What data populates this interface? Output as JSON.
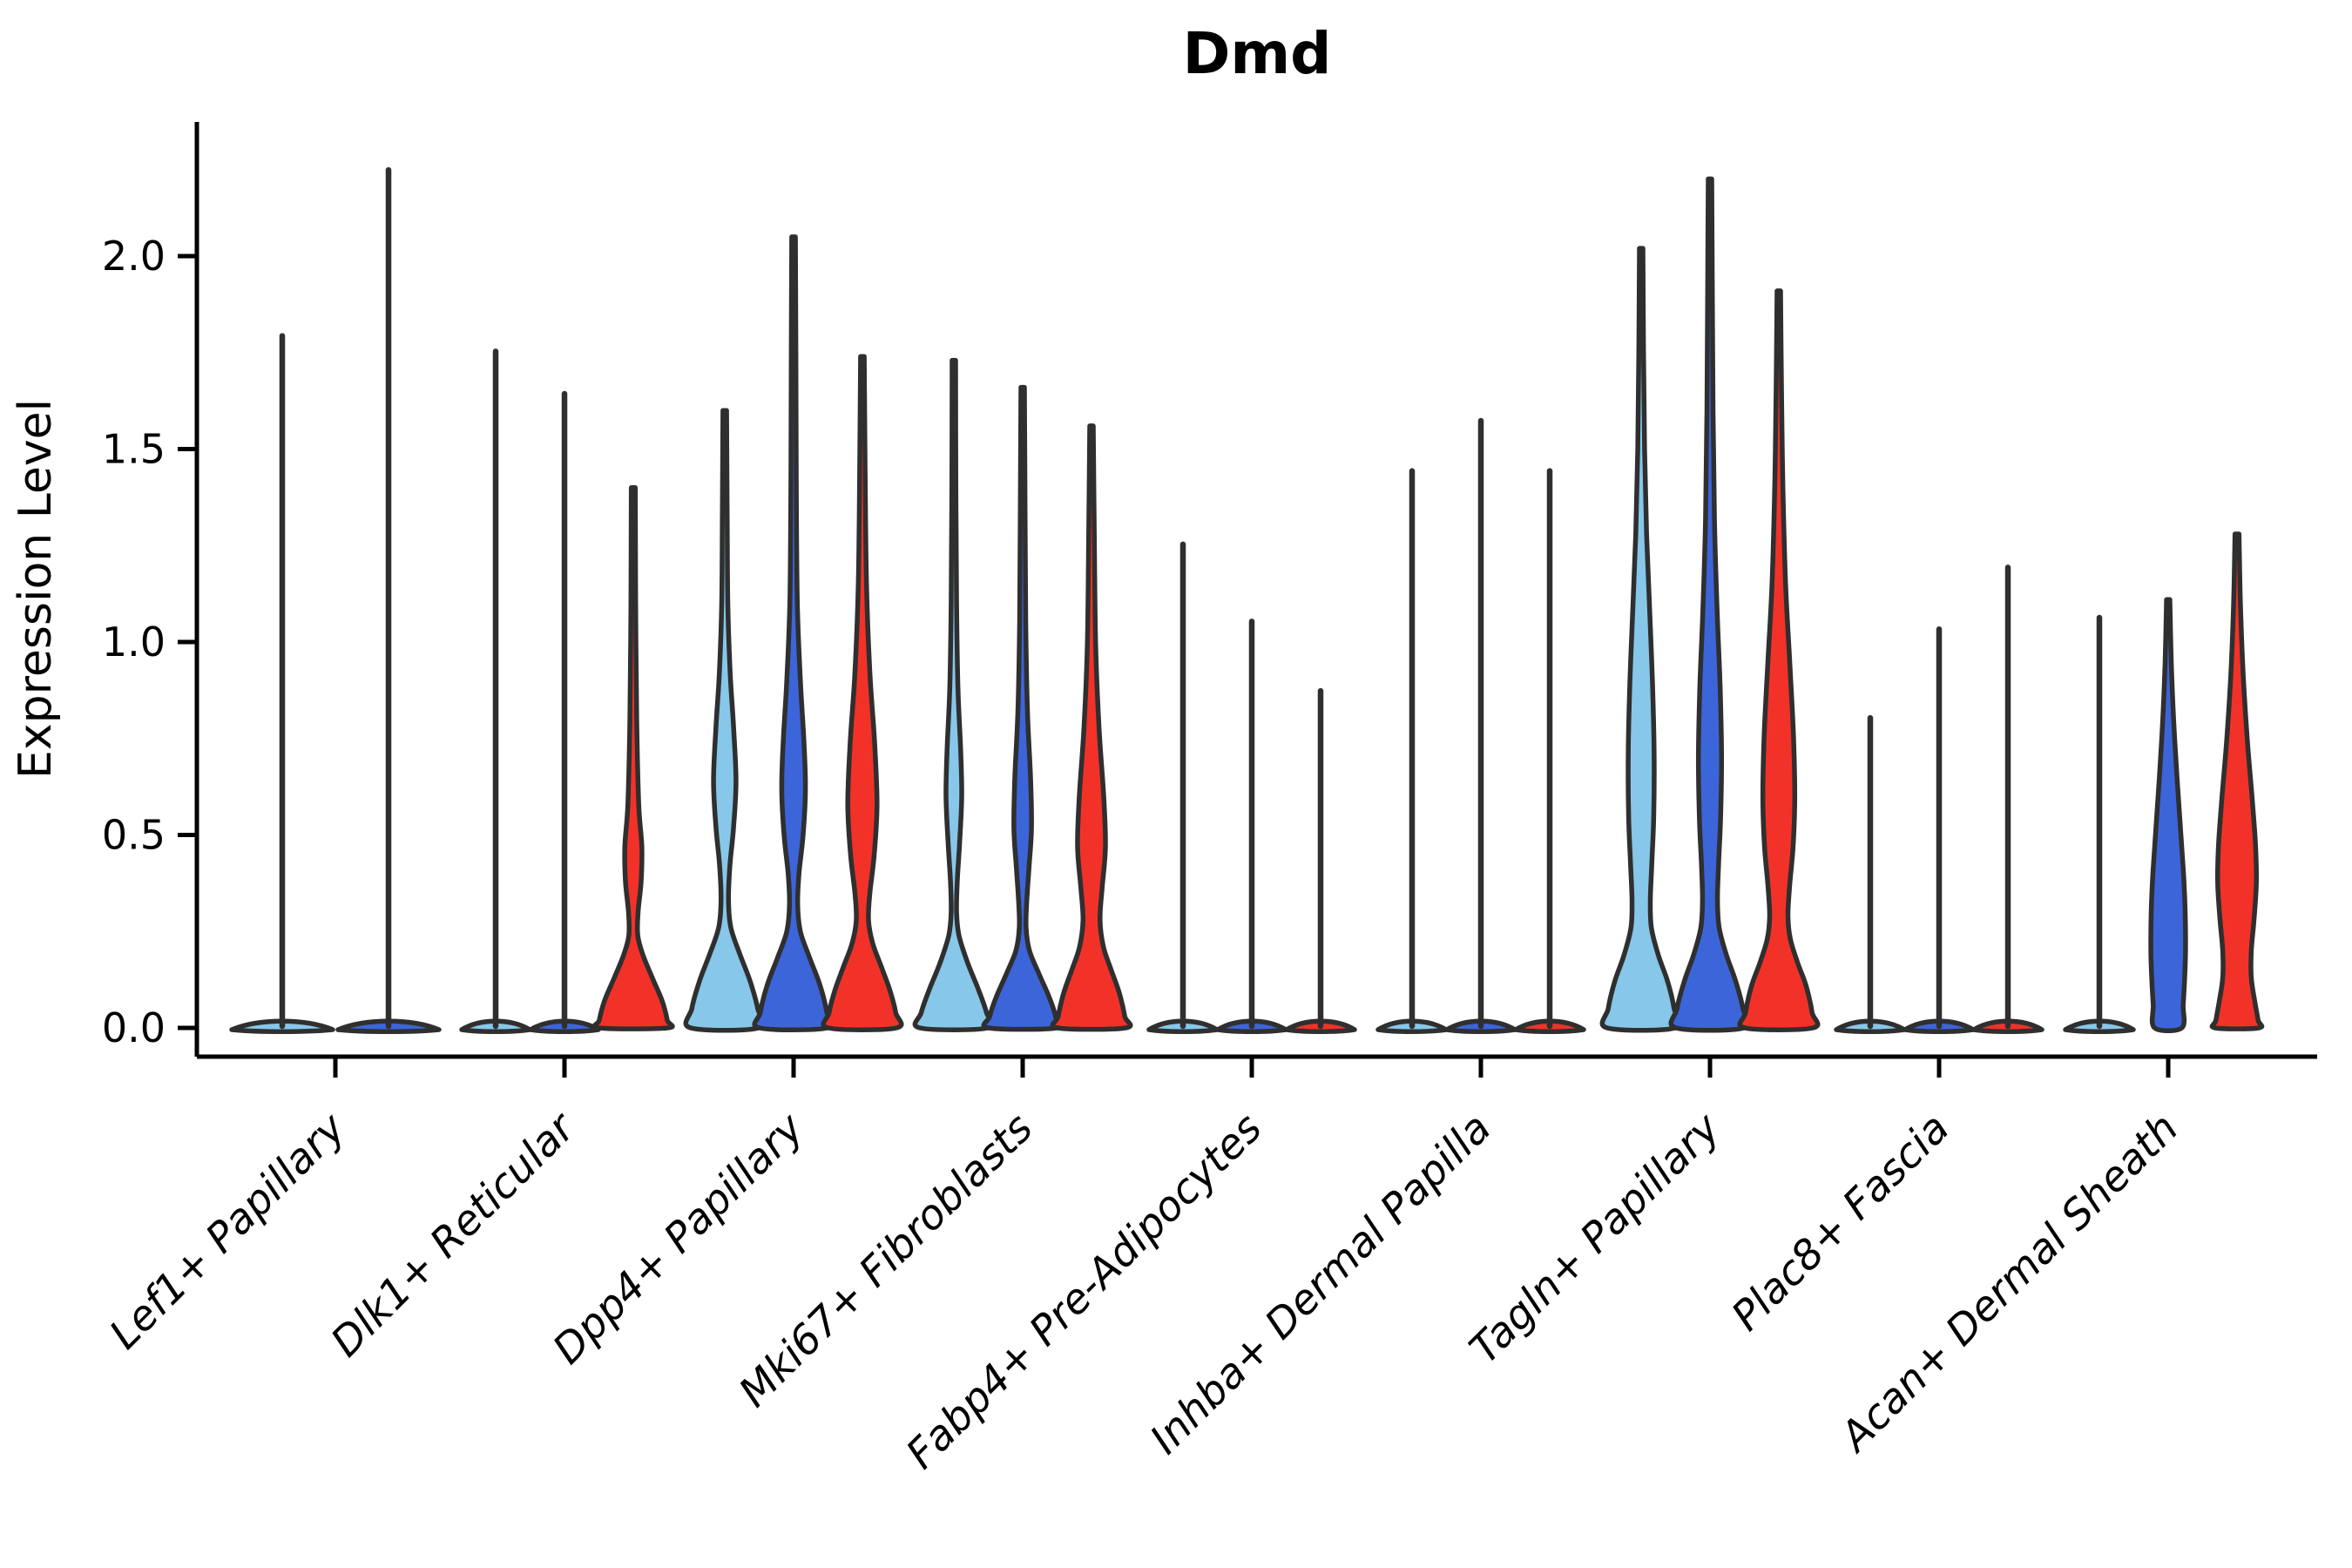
{
  "chart_data": {
    "type": "violin",
    "title": "Dmd",
    "ylabel": "Expression Level",
    "xlabel": "",
    "yticks": [
      "0.0",
      "0.5",
      "1.0",
      "1.5",
      "2.0"
    ],
    "ytick_values": [
      0.0,
      0.5,
      1.0,
      1.5,
      2.0
    ],
    "ylim": [
      -0.08,
      2.35
    ],
    "grid": false,
    "legend_position": "none",
    "outline_color": "#2F2F2F",
    "axis_color": "#000000",
    "series": [
      {
        "name": "series-lightblue",
        "color": "#87C7E9"
      },
      {
        "name": "series-blue",
        "color": "#3D65DA"
      },
      {
        "name": "series-red",
        "color": "#F23229"
      }
    ],
    "categories": [
      "Lef1+ Papillary",
      "Dlk1+ Reticular",
      "Dpp4+ Papillary",
      "Mki67+ Fibroblasts",
      "Fabp4+ Pre-Adipocytes",
      "Inhba+ Dermal Papilla",
      "Tagln+ Papillary",
      "Plac8+ Fascia",
      "Acan+ Dermal Sheath"
    ],
    "groups": [
      {
        "category": "Lef1+ Papillary",
        "violins": [
          {
            "series": 0,
            "kind": "spike",
            "max": 1.8,
            "offset": -61,
            "halfwidth": 58
          },
          {
            "series": 1,
            "kind": "spike",
            "max": 2.23,
            "offset": 61,
            "halfwidth": 58
          }
        ]
      },
      {
        "category": "Dlk1+ Reticular",
        "violins": [
          {
            "series": 0,
            "kind": "spike",
            "max": 1.76,
            "offset": -79,
            "halfwidth": 39
          },
          {
            "series": 1,
            "kind": "spike",
            "max": 1.65,
            "offset": 0,
            "halfwidth": 39
          },
          {
            "series": 2,
            "kind": "body",
            "max": 1.4,
            "offset": 79,
            "halfwidth": 39,
            "profile": [
              [
                1.4,
                0.06
              ],
              [
                1.1,
                0.07
              ],
              [
                0.8,
                0.1
              ],
              [
                0.58,
                0.16
              ],
              [
                0.47,
                0.25
              ],
              [
                0.38,
                0.23
              ],
              [
                0.3,
                0.14
              ],
              [
                0.24,
                0.13
              ],
              [
                0.19,
                0.28
              ],
              [
                0.13,
                0.56
              ],
              [
                0.07,
                0.85
              ],
              [
                0.02,
                1.0
              ],
              [
                0,
                1.0
              ]
            ]
          }
        ]
      },
      {
        "category": "Dpp4+ Papillary",
        "violins": [
          {
            "series": 0,
            "kind": "body",
            "max": 1.6,
            "offset": -79,
            "halfwidth": 39,
            "profile": [
              [
                1.6,
                0.055
              ],
              [
                1.35,
                0.07
              ],
              [
                1.1,
                0.09
              ],
              [
                0.92,
                0.16
              ],
              [
                0.78,
                0.26
              ],
              [
                0.64,
                0.33
              ],
              [
                0.52,
                0.26
              ],
              [
                0.42,
                0.15
              ],
              [
                0.33,
                0.11
              ],
              [
                0.26,
                0.18
              ],
              [
                0.19,
                0.45
              ],
              [
                0.12,
                0.75
              ],
              [
                0.05,
                0.97
              ],
              [
                0,
                1.0
              ]
            ]
          },
          {
            "series": 1,
            "kind": "body",
            "max": 2.05,
            "offset": 0,
            "halfwidth": 39,
            "profile": [
              [
                2.05,
                0.055
              ],
              [
                1.7,
                0.07
              ],
              [
                1.4,
                0.08
              ],
              [
                1.1,
                0.11
              ],
              [
                0.9,
                0.2
              ],
              [
                0.75,
                0.3
              ],
              [
                0.62,
                0.35
              ],
              [
                0.5,
                0.28
              ],
              [
                0.4,
                0.16
              ],
              [
                0.32,
                0.12
              ],
              [
                0.25,
                0.2
              ],
              [
                0.18,
                0.48
              ],
              [
                0.11,
                0.78
              ],
              [
                0.04,
                0.98
              ],
              [
                0,
                1.0
              ]
            ]
          },
          {
            "series": 2,
            "kind": "body",
            "max": 1.74,
            "offset": 79,
            "halfwidth": 39,
            "profile": [
              [
                1.74,
                0.055
              ],
              [
                1.45,
                0.08
              ],
              [
                1.15,
                0.12
              ],
              [
                0.92,
                0.22
              ],
              [
                0.74,
                0.36
              ],
              [
                0.58,
                0.43
              ],
              [
                0.45,
                0.35
              ],
              [
                0.35,
                0.22
              ],
              [
                0.28,
                0.18
              ],
              [
                0.22,
                0.3
              ],
              [
                0.16,
                0.55
              ],
              [
                0.1,
                0.8
              ],
              [
                0.04,
                0.98
              ],
              [
                0,
                1.0
              ]
            ]
          }
        ]
      },
      {
        "category": "Mki67+ Fibroblasts",
        "violins": [
          {
            "series": 0,
            "kind": "body",
            "max": 1.73,
            "offset": -79,
            "halfwidth": 39,
            "profile": [
              [
                1.73,
                0.05
              ],
              [
                1.4,
                0.06
              ],
              [
                1.1,
                0.08
              ],
              [
                0.88,
                0.12
              ],
              [
                0.72,
                0.2
              ],
              [
                0.6,
                0.23
              ],
              [
                0.48,
                0.17
              ],
              [
                0.38,
                0.1
              ],
              [
                0.3,
                0.08
              ],
              [
                0.24,
                0.15
              ],
              [
                0.17,
                0.4
              ],
              [
                0.1,
                0.72
              ],
              [
                0.04,
                0.96
              ],
              [
                0,
                1.0
              ]
            ]
          },
          {
            "series": 1,
            "kind": "body",
            "max": 1.66,
            "offset": 0,
            "halfwidth": 39,
            "profile": [
              [
                1.66,
                0.05
              ],
              [
                1.35,
                0.07
              ],
              [
                1.05,
                0.09
              ],
              [
                0.82,
                0.14
              ],
              [
                0.65,
                0.23
              ],
              [
                0.52,
                0.26
              ],
              [
                0.42,
                0.19
              ],
              [
                0.33,
                0.12
              ],
              [
                0.26,
                0.1
              ],
              [
                0.2,
                0.2
              ],
              [
                0.14,
                0.48
              ],
              [
                0.08,
                0.78
              ],
              [
                0.03,
                0.97
              ],
              [
                0,
                1.0
              ]
            ]
          },
          {
            "series": 2,
            "kind": "body",
            "max": 1.56,
            "offset": 79,
            "halfwidth": 39,
            "profile": [
              [
                1.56,
                0.05
              ],
              [
                1.3,
                0.08
              ],
              [
                1.0,
                0.12
              ],
              [
                0.78,
                0.22
              ],
              [
                0.6,
                0.36
              ],
              [
                0.47,
                0.41
              ],
              [
                0.36,
                0.31
              ],
              [
                0.28,
                0.25
              ],
              [
                0.21,
                0.35
              ],
              [
                0.15,
                0.58
              ],
              [
                0.09,
                0.82
              ],
              [
                0.03,
                0.98
              ],
              [
                0,
                1.0
              ]
            ]
          }
        ]
      },
      {
        "category": "Fabp4+ Pre-Adipocytes",
        "violins": [
          {
            "series": 0,
            "kind": "spike",
            "max": 1.26,
            "offset": -79,
            "halfwidth": 39
          },
          {
            "series": 1,
            "kind": "spike",
            "max": 1.06,
            "offset": 0,
            "halfwidth": 39
          },
          {
            "series": 2,
            "kind": "spike",
            "max": 0.88,
            "offset": 79,
            "halfwidth": 39
          }
        ]
      },
      {
        "category": "Inhba+ Dermal Papilla",
        "violins": [
          {
            "series": 0,
            "kind": "spike",
            "max": 1.45,
            "offset": -79,
            "halfwidth": 39
          },
          {
            "series": 1,
            "kind": "spike",
            "max": 1.58,
            "offset": 0,
            "halfwidth": 39
          },
          {
            "series": 2,
            "kind": "spike",
            "max": 1.45,
            "offset": 79,
            "halfwidth": 39
          }
        ]
      },
      {
        "category": "Tagln+ Papillary",
        "violins": [
          {
            "series": 0,
            "kind": "body",
            "max": 2.02,
            "offset": -79,
            "halfwidth": 39,
            "profile": [
              [
                2.02,
                0.05
              ],
              [
                1.75,
                0.07
              ],
              [
                1.5,
                0.1
              ],
              [
                1.28,
                0.16
              ],
              [
                1.08,
                0.25
              ],
              [
                0.9,
                0.33
              ],
              [
                0.72,
                0.38
              ],
              [
                0.55,
                0.37
              ],
              [
                0.42,
                0.31
              ],
              [
                0.33,
                0.27
              ],
              [
                0.26,
                0.3
              ],
              [
                0.19,
                0.5
              ],
              [
                0.12,
                0.78
              ],
              [
                0.05,
                0.97
              ],
              [
                0,
                1.0
              ]
            ]
          },
          {
            "series": 1,
            "kind": "body",
            "max": 2.2,
            "offset": 0,
            "halfwidth": 39,
            "profile": [
              [
                2.2,
                0.05
              ],
              [
                1.9,
                0.07
              ],
              [
                1.6,
                0.09
              ],
              [
                1.32,
                0.13
              ],
              [
                1.08,
                0.21
              ],
              [
                0.88,
                0.3
              ],
              [
                0.7,
                0.34
              ],
              [
                0.54,
                0.31
              ],
              [
                0.42,
                0.25
              ],
              [
                0.33,
                0.22
              ],
              [
                0.26,
                0.27
              ],
              [
                0.19,
                0.48
              ],
              [
                0.12,
                0.76
              ],
              [
                0.05,
                0.97
              ],
              [
                0,
                1.0
              ]
            ]
          },
          {
            "series": 2,
            "kind": "body",
            "max": 1.91,
            "offset": 79,
            "halfwidth": 39,
            "profile": [
              [
                1.91,
                0.05
              ],
              [
                1.65,
                0.08
              ],
              [
                1.4,
                0.12
              ],
              [
                1.15,
                0.2
              ],
              [
                0.95,
                0.32
              ],
              [
                0.76,
                0.43
              ],
              [
                0.6,
                0.47
              ],
              [
                0.47,
                0.42
              ],
              [
                0.37,
                0.32
              ],
              [
                0.29,
                0.27
              ],
              [
                0.23,
                0.34
              ],
              [
                0.17,
                0.55
              ],
              [
                0.11,
                0.8
              ],
              [
                0.04,
                0.98
              ],
              [
                0,
                1.0
              ]
            ]
          }
        ]
      },
      {
        "category": "Plac8+ Fascia",
        "violins": [
          {
            "series": 0,
            "kind": "spike",
            "max": 0.81,
            "offset": -79,
            "halfwidth": 39
          },
          {
            "series": 1,
            "kind": "spike",
            "max": 1.04,
            "offset": 0,
            "halfwidth": 39
          },
          {
            "series": 2,
            "kind": "spike",
            "max": 1.2,
            "offset": 79,
            "halfwidth": 39
          }
        ]
      },
      {
        "category": "Acan+ Dermal Sheath",
        "violins": [
          {
            "series": 0,
            "kind": "spike",
            "max": 1.07,
            "offset": -79,
            "halfwidth": 39
          },
          {
            "series": 1,
            "kind": "body",
            "max": 1.11,
            "offset": 0,
            "halfwidth": 39,
            "profile": [
              [
                1.11,
                0.05
              ],
              [
                0.95,
                0.09
              ],
              [
                0.8,
                0.16
              ],
              [
                0.65,
                0.26
              ],
              [
                0.52,
                0.36
              ],
              [
                0.4,
                0.45
              ],
              [
                0.3,
                0.5
              ],
              [
                0.2,
                0.51
              ],
              [
                0.12,
                0.48
              ],
              [
                0.06,
                0.44
              ],
              [
                0,
                0.4
              ]
            ]
          },
          {
            "series": 2,
            "kind": "body",
            "max": 1.28,
            "offset": 79,
            "halfwidth": 39,
            "profile": [
              [
                1.28,
                0.06
              ],
              [
                1.1,
                0.1
              ],
              [
                0.92,
                0.18
              ],
              [
                0.75,
                0.3
              ],
              [
                0.6,
                0.44
              ],
              [
                0.48,
                0.54
              ],
              [
                0.38,
                0.57
              ],
              [
                0.28,
                0.5
              ],
              [
                0.2,
                0.42
              ],
              [
                0.13,
                0.42
              ],
              [
                0.07,
                0.52
              ],
              [
                0.02,
                0.62
              ],
              [
                0,
                0.64
              ]
            ]
          }
        ]
      }
    ]
  }
}
